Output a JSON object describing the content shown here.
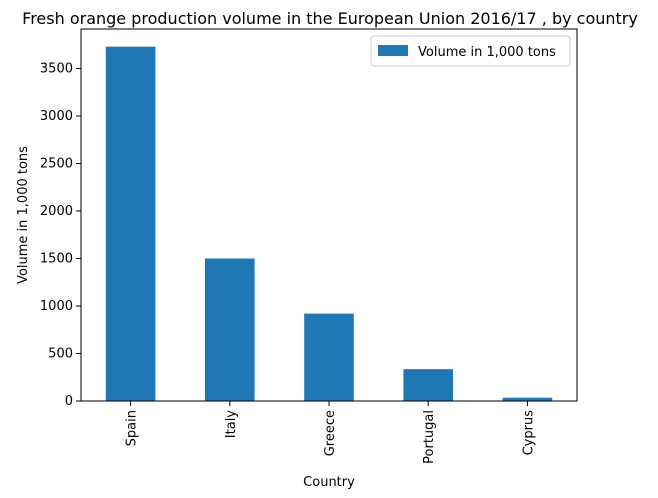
{
  "chart_data": {
    "type": "bar",
    "title": "Fresh orange production volume in the European Union 2016/17 , by country",
    "xlabel": "Country",
    "ylabel": "Volume in 1,000 tons",
    "categories": [
      "Spain",
      "Italy",
      "Greece",
      "Portugal",
      "Cyprus"
    ],
    "series": [
      {
        "name": "Volume in 1,000 tons",
        "values": [
          3730,
          1500,
          920,
          335,
          35
        ]
      }
    ],
    "yticks": [
      0,
      500,
      1000,
      1500,
      2000,
      2500,
      3000,
      3500
    ],
    "ylim": [
      0,
      3916
    ],
    "grid": false,
    "legend_position": "top-right",
    "bar_color": "#1f77b4"
  }
}
